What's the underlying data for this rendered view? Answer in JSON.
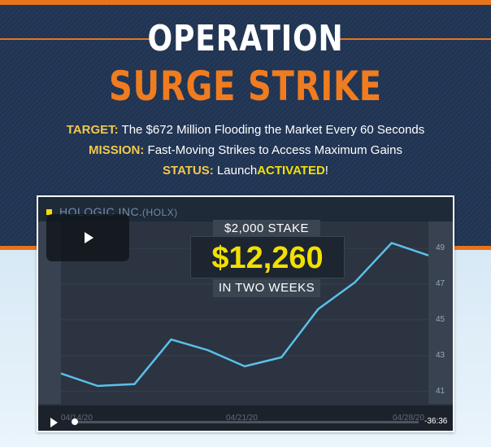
{
  "headline": {
    "line1": "OPERATION",
    "line2": "SURGE STRIKE"
  },
  "info": {
    "target_label": "TARGET:",
    "target_text": "The $672 Million Flooding the Market Every 60 Seconds",
    "mission_label": "MISSION:",
    "mission_text": "Fast-Moving Strikes to Access Maximum Gains",
    "status_label": "STATUS:",
    "status_text": "Launch",
    "status_highlight": "ACTIVATED",
    "status_end": "!"
  },
  "video": {
    "company": "HOLOGIC INC.",
    "symbol": "(HOLX)",
    "stake_label": "$2,000 STAKE",
    "stake_amount": "$12,260",
    "stake_period": "IN TWO WEEKS",
    "time_remaining": "-36:36",
    "progress": 0.01
  },
  "chart_data": {
    "type": "line",
    "x_tick_labels": [
      "04/14/20",
      "04/21/20",
      "04/28/20"
    ],
    "y_ticks": [
      41,
      43,
      45,
      47,
      49
    ],
    "ylim": [
      40.3,
      50.5
    ],
    "series": [
      {
        "values": [
          42.0,
          41.3,
          41.4,
          43.9,
          43.3,
          42.4,
          42.9,
          45.6,
          47.1,
          49.3,
          48.6
        ]
      }
    ]
  },
  "colors": {
    "accent_orange": "#e8731d",
    "highlight_yellow": "#f2e000",
    "label_gold": "#f2c94c",
    "line_blue": "#5bc0eb",
    "navy": "#1f3352"
  }
}
